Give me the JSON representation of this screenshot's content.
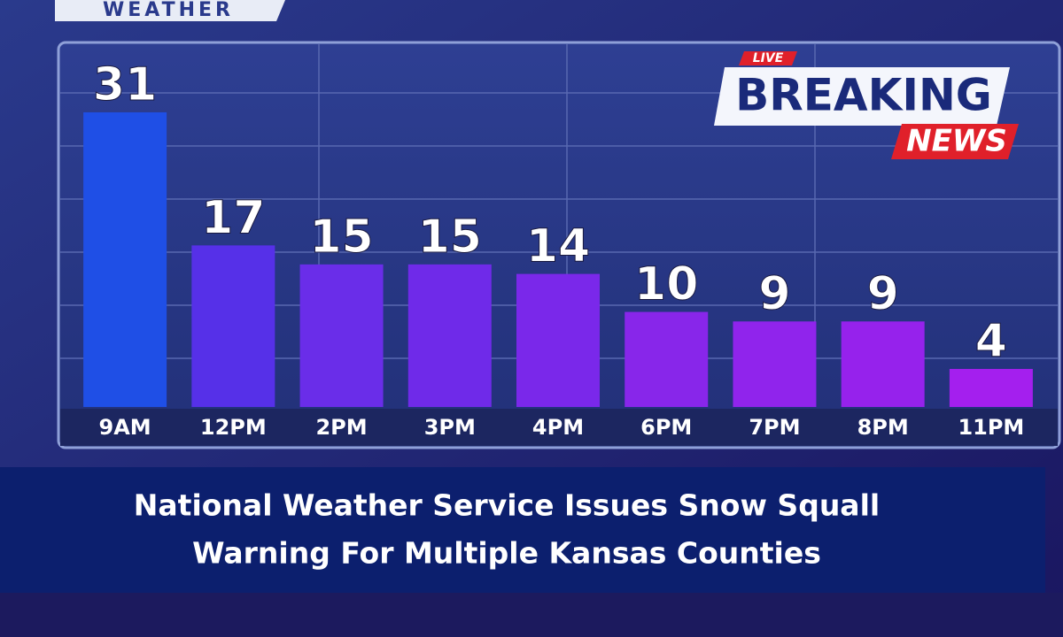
{
  "header": {
    "label": "WEATHER"
  },
  "badge": {
    "live": "LIVE",
    "breaking": "BREAKING",
    "news": "NEWS"
  },
  "chart_data": {
    "type": "bar",
    "categories": [
      "9AM",
      "12PM",
      "2PM",
      "3PM",
      "4PM",
      "6PM",
      "7PM",
      "8PM",
      "11PM"
    ],
    "values": [
      31,
      17,
      15,
      15,
      14,
      10,
      9,
      9,
      4
    ],
    "colors": [
      "#1f4fe6",
      "#5630e8",
      "#6a2de9",
      "#6f2ae9",
      "#7a28ea",
      "#8826ea",
      "#9024ec",
      "#9622ec",
      "#a41fee"
    ],
    "ylim": [
      0,
      35
    ]
  },
  "headline": {
    "lines": [
      "National Weather Service Issues Snow Squall",
      "Warning For Multiple Kansas Counties"
    ]
  }
}
